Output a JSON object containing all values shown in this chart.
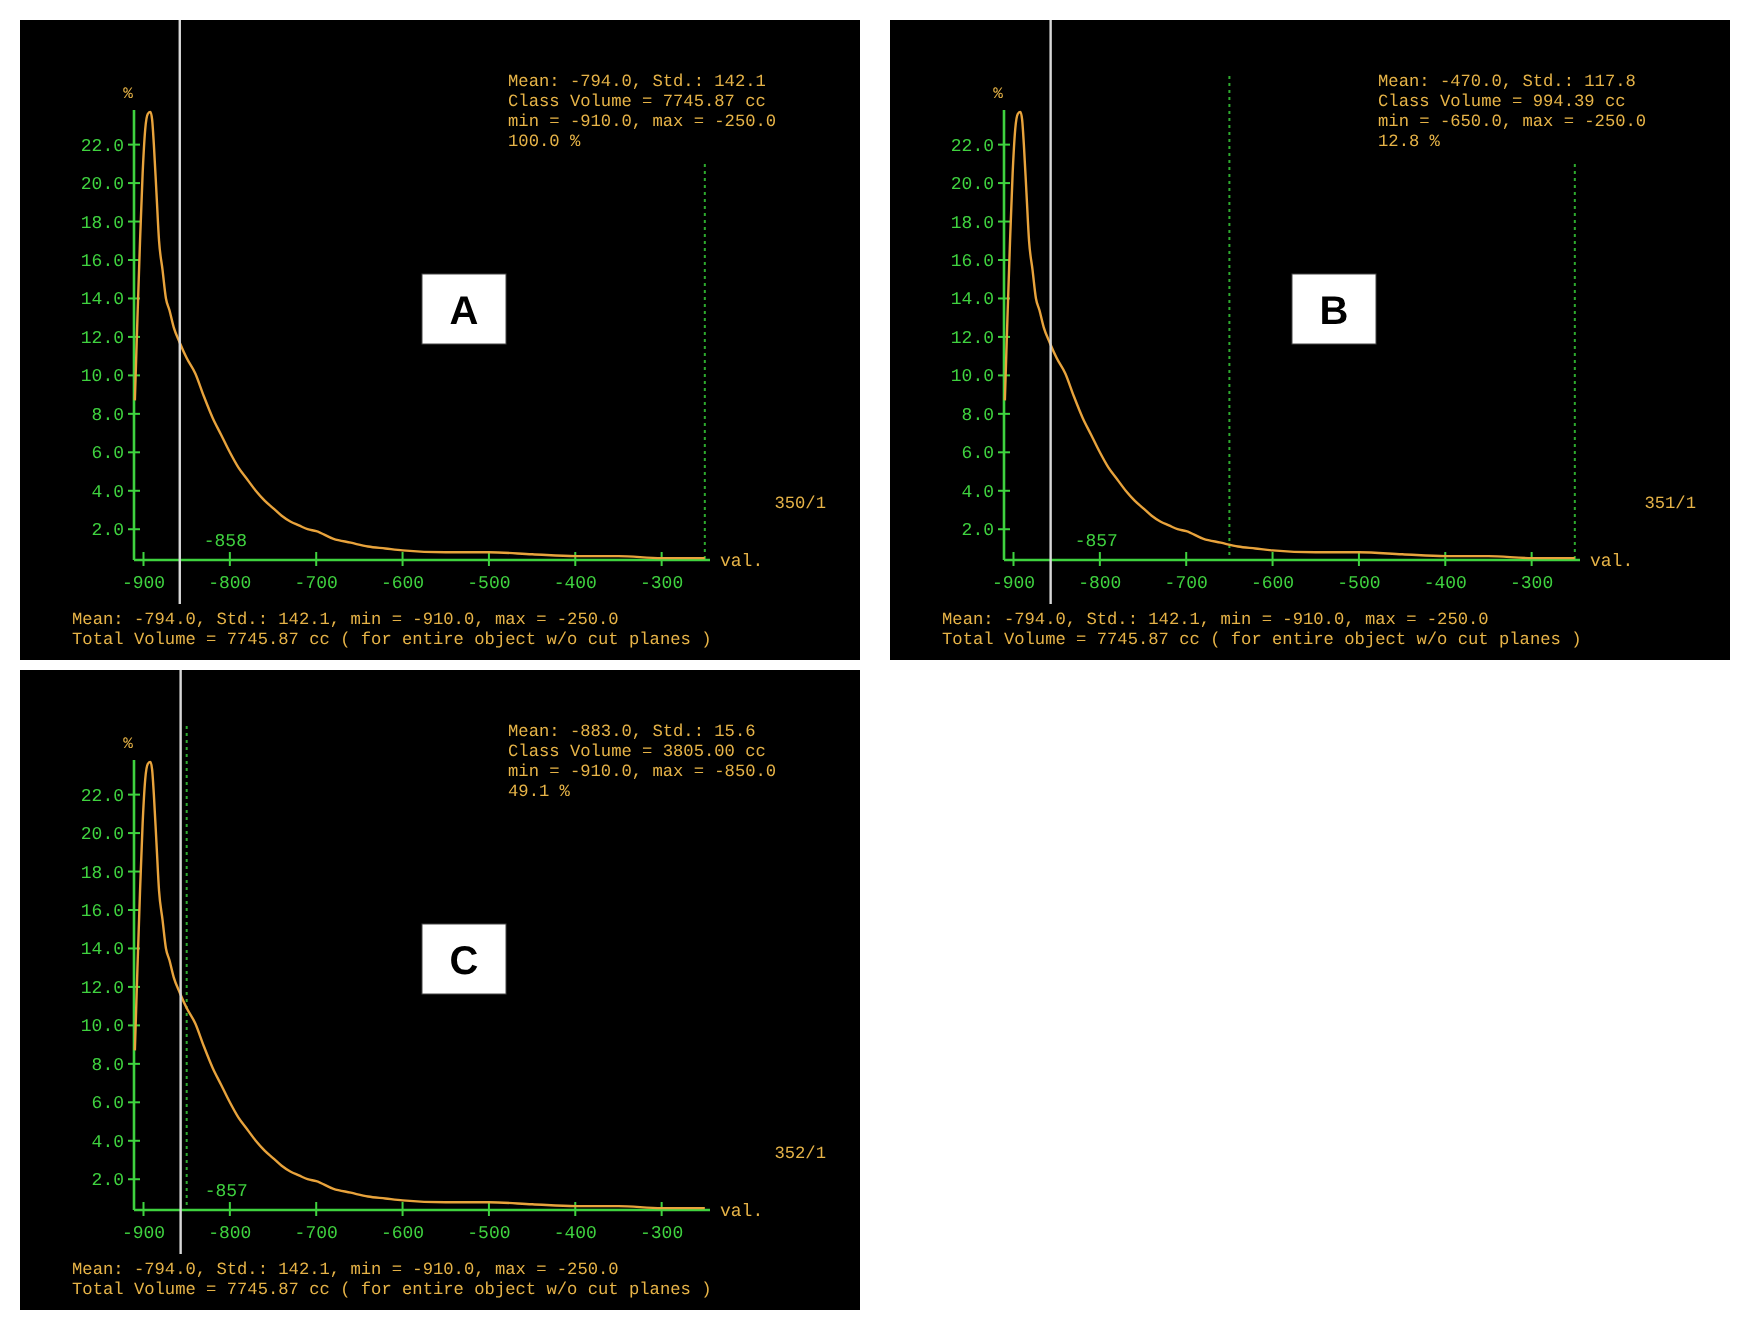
{
  "chart_data": [
    {
      "type": "line",
      "xlabel": "val.",
      "ylabel": "%",
      "xlim": [
        -911,
        -244
      ],
      "ylim": [
        0.4,
        23.8
      ],
      "xticks": [
        -900,
        -800,
        -700,
        -600,
        -500,
        -400,
        -300
      ],
      "yticks": [
        {
          "value": 2,
          "label": "2.0"
        },
        {
          "value": 4,
          "label": "4.0"
        },
        {
          "value": 6,
          "label": "6.0"
        },
        {
          "value": 8,
          "label": "8.0"
        },
        {
          "value": 10,
          "label": "10.0"
        },
        {
          "value": 12,
          "label": "12.0"
        },
        {
          "value": 14,
          "label": "14.0"
        },
        {
          "value": 16,
          "label": "16.0"
        },
        {
          "value": 18,
          "label": "18.0"
        },
        {
          "value": 20,
          "label": "20.0"
        },
        {
          "value": 22,
          "label": "22.0"
        }
      ],
      "x": [
        -910,
        -907,
        -904,
        -901,
        -898,
        -895,
        -892,
        -890,
        -888,
        -885,
        -882,
        -878,
        -874,
        -870,
        -865,
        -858,
        -850,
        -840,
        -830,
        -820,
        -810,
        -800,
        -790,
        -780,
        -770,
        -760,
        -750,
        -740,
        -730,
        -720,
        -710,
        -700,
        -680,
        -660,
        -640,
        -620,
        -600,
        -550,
        -500,
        -450,
        -400,
        -350,
        -300,
        -250
      ],
      "series": [
        {
          "color": "#e8a33c",
          "values": [
            8.7,
            13,
            17,
            20.5,
            22.8,
            23.6,
            23.7,
            23.3,
            22,
            19.5,
            17,
            15.5,
            14,
            13.4,
            12.5,
            11.7,
            10.9,
            10.1,
            8.9,
            7.8,
            6.9,
            6.0,
            5.2,
            4.6,
            4.0,
            3.5,
            3.1,
            2.7,
            2.4,
            2.2,
            2.0,
            1.9,
            1.5,
            1.3,
            1.1,
            1.0,
            0.9,
            0.8,
            0.8,
            0.7,
            0.6,
            0.6,
            0.5,
            0.5
          ]
        }
      ],
      "ref_lines": [
        {
          "axis": "x",
          "value": -858,
          "label": "-858",
          "color": "#d8d8d8",
          "line_style": "solid"
        },
        {
          "axis": "x",
          "value": -250,
          "label": null,
          "color": "#2eaa2e",
          "line_style": "dotted"
        }
      ],
      "annotations": [
        "Mean: -794.0, Std.: 142.1",
        "Class Volume = 7745.87 cc",
        "min = -910.0, max = -250.0",
        "100.0 %",
        "350/1",
        "Mean: -794.0, Std.: 142.1, min = -910.0, max = -250.0",
        "Total Volume = 7745.87 cc ( for entire object w/o cut planes )",
        "A"
      ]
    },
    {
      "type": "line",
      "xlabel": "val.",
      "ylabel": "%",
      "xlim": [
        -911,
        -244
      ],
      "ylim": [
        0.4,
        23.8
      ],
      "xticks": [
        -900,
        -800,
        -700,
        -600,
        -500,
        -400,
        -300
      ],
      "yticks": [
        {
          "value": 2,
          "label": "2.0"
        },
        {
          "value": 4,
          "label": "4.0"
        },
        {
          "value": 6,
          "label": "6.0"
        },
        {
          "value": 8,
          "label": "8.0"
        },
        {
          "value": 10,
          "label": "10.0"
        },
        {
          "value": 12,
          "label": "12.0"
        },
        {
          "value": 14,
          "label": "14.0"
        },
        {
          "value": 16,
          "label": "16.0"
        },
        {
          "value": 18,
          "label": "18.0"
        },
        {
          "value": 20,
          "label": "20.0"
        },
        {
          "value": 22,
          "label": "22.0"
        }
      ],
      "x": [
        -910,
        -907,
        -904,
        -901,
        -898,
        -895,
        -892,
        -890,
        -888,
        -885,
        -882,
        -878,
        -874,
        -870,
        -865,
        -858,
        -850,
        -840,
        -830,
        -820,
        -810,
        -800,
        -790,
        -780,
        -770,
        -760,
        -750,
        -740,
        -730,
        -720,
        -710,
        -700,
        -680,
        -660,
        -640,
        -620,
        -600,
        -550,
        -500,
        -450,
        -400,
        -350,
        -300,
        -250
      ],
      "series": [
        {
          "color": "#e8a33c",
          "values": [
            8.7,
            13,
            17,
            20.5,
            22.8,
            23.6,
            23.7,
            23.3,
            22,
            19.5,
            17,
            15.5,
            14,
            13.4,
            12.5,
            11.7,
            10.9,
            10.1,
            8.9,
            7.8,
            6.9,
            6.0,
            5.2,
            4.6,
            4.0,
            3.5,
            3.1,
            2.7,
            2.4,
            2.2,
            2.0,
            1.9,
            1.5,
            1.3,
            1.1,
            1.0,
            0.9,
            0.8,
            0.8,
            0.7,
            0.6,
            0.6,
            0.5,
            0.5
          ]
        }
      ],
      "ref_lines": [
        {
          "axis": "x",
          "value": -857,
          "label": "-857",
          "color": "#d8d8d8",
          "line_style": "solid"
        },
        {
          "axis": "x",
          "value": -650,
          "label": null,
          "color": "#2eaa2e",
          "line_style": "dotted"
        },
        {
          "axis": "x",
          "value": -250,
          "label": null,
          "color": "#2eaa2e",
          "line_style": "dotted"
        }
      ],
      "annotations": [
        "Mean: -470.0, Std.: 117.8",
        "Class Volume = 994.39 cc",
        "min = -650.0, max = -250.0",
        "12.8 %",
        "351/1",
        "Mean: -794.0, Std.: 142.1, min = -910.0, max = -250.0",
        "Total Volume = 7745.87 cc ( for entire object w/o cut planes )",
        "B"
      ]
    },
    {
      "type": "line",
      "xlabel": "val.",
      "ylabel": "%",
      "xlim": [
        -911,
        -244
      ],
      "ylim": [
        0.4,
        23.8
      ],
      "xticks": [
        -900,
        -800,
        -700,
        -600,
        -500,
        -400,
        -300
      ],
      "yticks": [
        {
          "value": 2,
          "label": "2.0"
        },
        {
          "value": 4,
          "label": "4.0"
        },
        {
          "value": 6,
          "label": "6.0"
        },
        {
          "value": 8,
          "label": "8.0"
        },
        {
          "value": 10,
          "label": "10.0"
        },
        {
          "value": 12,
          "label": "12.0"
        },
        {
          "value": 14,
          "label": "14.0"
        },
        {
          "value": 16,
          "label": "16.0"
        },
        {
          "value": 18,
          "label": "18.0"
        },
        {
          "value": 20,
          "label": "20.0"
        },
        {
          "value": 22,
          "label": "22.0"
        }
      ],
      "x": [
        -910,
        -907,
        -904,
        -901,
        -898,
        -895,
        -892,
        -890,
        -888,
        -885,
        -882,
        -878,
        -874,
        -870,
        -865,
        -858,
        -850,
        -840,
        -830,
        -820,
        -810,
        -800,
        -790,
        -780,
        -770,
        -760,
        -750,
        -740,
        -730,
        -720,
        -710,
        -700,
        -680,
        -660,
        -640,
        -620,
        -600,
        -550,
        -500,
        -450,
        -400,
        -350,
        -300,
        -250
      ],
      "series": [
        {
          "color": "#e8a33c",
          "values": [
            8.7,
            13,
            17,
            20.5,
            22.8,
            23.6,
            23.7,
            23.3,
            22,
            19.5,
            17,
            15.5,
            14,
            13.4,
            12.5,
            11.7,
            10.9,
            10.1,
            8.9,
            7.8,
            6.9,
            6.0,
            5.2,
            4.6,
            4.0,
            3.5,
            3.1,
            2.7,
            2.4,
            2.2,
            2.0,
            1.9,
            1.5,
            1.3,
            1.1,
            1.0,
            0.9,
            0.8,
            0.8,
            0.7,
            0.6,
            0.6,
            0.5,
            0.5
          ]
        }
      ],
      "ref_lines": [
        {
          "axis": "x",
          "value": -857,
          "label": "-857",
          "color": "#d8d8d8",
          "line_style": "solid"
        },
        {
          "axis": "x",
          "value": -850,
          "label": null,
          "color": "#2eaa2e",
          "line_style": "dotted"
        }
      ],
      "annotations": [
        "Mean: -883.0, Std.: 15.6",
        "Class Volume = 3805.00 cc",
        "min = -910.0, max = -850.0",
        "49.1 %",
        "352/1",
        "Mean: -794.0, Std.: 142.1, min = -910.0, max = -250.0",
        "Total Volume = 7745.87 cc ( for entire object w/o cut planes )",
        "C"
      ]
    }
  ]
}
